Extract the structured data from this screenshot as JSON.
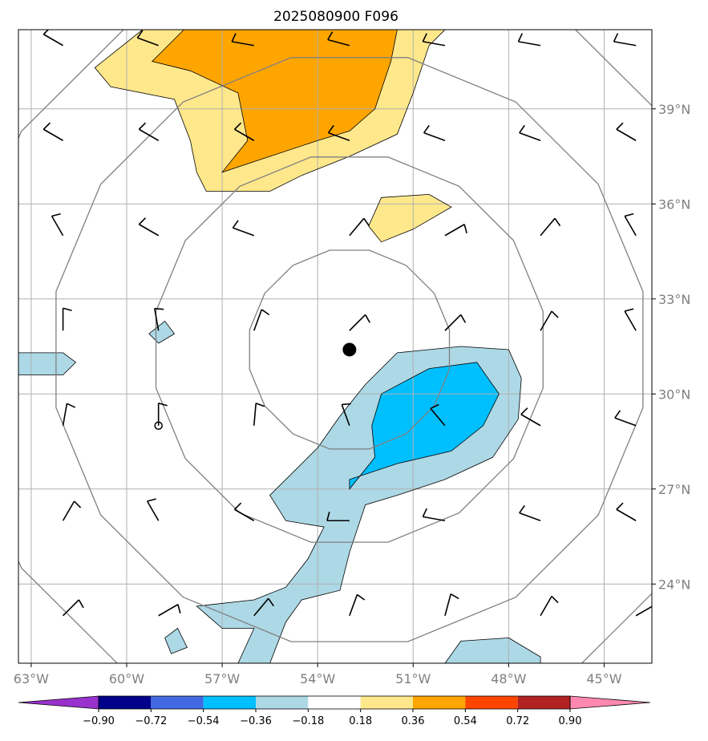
{
  "chart_data": {
    "type": "heatmap",
    "title": "2025080900 F096",
    "x_ticks": [
      -63,
      -60,
      -57,
      -54,
      -51,
      -48,
      -45
    ],
    "x_tick_labels": [
      "63°W",
      "60°W",
      "57°W",
      "54°W",
      "51°W",
      "48°W",
      "45°W"
    ],
    "y_ticks": [
      24,
      27,
      30,
      33,
      36,
      39
    ],
    "y_tick_labels": [
      "24°N",
      "27°N",
      "30°N",
      "33°N",
      "36°N",
      "39°N"
    ],
    "xlim": [
      -63.4,
      -43.5
    ],
    "ylim": [
      21.5,
      41.5
    ],
    "grid": true,
    "colorbar": {
      "levels": [
        -0.9,
        -0.72,
        -0.54,
        -0.36,
        -0.18,
        0.18,
        0.36,
        0.54,
        0.72,
        0.9
      ],
      "tick_labels": [
        "−0.90",
        "−0.72",
        "−0.54",
        "−0.36",
        "−0.18",
        "0.18",
        "0.36",
        "0.54",
        "0.72",
        "0.90"
      ],
      "colors": [
        "#9932cc",
        "#00008b",
        "#4169e1",
        "#00bfff",
        "#add8e6",
        "#ffffff",
        "#ffe88c",
        "#ffa500",
        "#ff4500",
        "#b22222",
        "#ff88b0"
      ],
      "extend": "both"
    },
    "storm_center": {
      "lon": -53.0,
      "lat": 31.4
    },
    "secondary_center": {
      "lon": -59.0,
      "lat": 29.0
    },
    "range_ring_radii_deg": [
      3.2,
      6.2,
      9.4,
      12.4
    ],
    "filled_regions": [
      {
        "level": "0.18 to 0.36",
        "color": "#ffe88c",
        "points": [
          [
            -59.5,
            41.5
          ],
          [
            -61.0,
            40.3
          ],
          [
            -60.5,
            39.7
          ],
          [
            -58.5,
            39.3
          ],
          [
            -58.0,
            38.0
          ],
          [
            -57.8,
            37.0
          ],
          [
            -57.5,
            36.4
          ],
          [
            -55.5,
            36.4
          ],
          [
            -54.5,
            36.9
          ],
          [
            -53.0,
            37.5
          ],
          [
            -51.5,
            38.2
          ],
          [
            -51.0,
            39.5
          ],
          [
            -50.5,
            41.0
          ],
          [
            -50.0,
            41.5
          ]
        ]
      },
      {
        "level": "0.36 to 0.54",
        "color": "#ffa500",
        "points": [
          [
            -58.2,
            41.5
          ],
          [
            -59.2,
            40.5
          ],
          [
            -58.0,
            40.2
          ],
          [
            -56.5,
            39.5
          ],
          [
            -56.2,
            38.0
          ],
          [
            -57.0,
            37.0
          ],
          [
            -55.5,
            37.5
          ],
          [
            -54.0,
            38.0
          ],
          [
            -53.0,
            38.3
          ],
          [
            -52.2,
            39.0
          ],
          [
            -51.7,
            40.5
          ],
          [
            -51.5,
            41.5
          ]
        ]
      },
      {
        "level": "0.18 to 0.36",
        "color": "#ffe88c",
        "points": [
          [
            -52.0,
            36.2
          ],
          [
            -50.5,
            36.3
          ],
          [
            -49.8,
            35.9
          ],
          [
            -51.0,
            35.2
          ],
          [
            -52.0,
            34.8
          ],
          [
            -52.4,
            35.3
          ]
        ]
      },
      {
        "level": "-0.36 to -0.18",
        "color": "#add8e6",
        "points": [
          [
            -63.4,
            31.3
          ],
          [
            -62.0,
            31.3
          ],
          [
            -61.6,
            31.0
          ],
          [
            -62.0,
            30.6
          ],
          [
            -63.4,
            30.6
          ]
        ]
      },
      {
        "level": "-0.36 to -0.18",
        "color": "#add8e6",
        "points": [
          [
            -59.3,
            31.9
          ],
          [
            -58.8,
            32.3
          ],
          [
            -58.5,
            31.9
          ],
          [
            -59.0,
            31.6
          ]
        ]
      },
      {
        "level": "-0.36 to -0.18",
        "color": "#add8e6",
        "points": [
          [
            -51.5,
            31.3
          ],
          [
            -49.5,
            31.5
          ],
          [
            -48.0,
            31.4
          ],
          [
            -47.6,
            30.5
          ],
          [
            -47.7,
            29.2
          ],
          [
            -48.5,
            28.0
          ],
          [
            -50.0,
            27.3
          ],
          [
            -51.5,
            26.8
          ],
          [
            -52.5,
            26.5
          ],
          [
            -53.0,
            25.0
          ],
          [
            -53.3,
            23.8
          ],
          [
            -54.5,
            23.5
          ],
          [
            -55.0,
            22.8
          ],
          [
            -55.5,
            21.5
          ],
          [
            -56.5,
            21.5
          ],
          [
            -56.0,
            22.6
          ],
          [
            -57.0,
            22.6
          ],
          [
            -57.8,
            23.3
          ],
          [
            -56.0,
            23.5
          ],
          [
            -55.0,
            23.9
          ],
          [
            -54.3,
            24.8
          ],
          [
            -53.8,
            25.8
          ],
          [
            -55.0,
            26.0
          ],
          [
            -55.5,
            26.8
          ],
          [
            -54.0,
            28.3
          ],
          [
            -53.3,
            29.3
          ],
          [
            -52.5,
            30.3
          ]
        ]
      },
      {
        "level": "-0.54 to -0.36",
        "color": "#00bfff",
        "points": [
          [
            -52.0,
            30.0
          ],
          [
            -50.5,
            30.8
          ],
          [
            -49.0,
            31.0
          ],
          [
            -48.3,
            30.0
          ],
          [
            -48.8,
            29.0
          ],
          [
            -49.8,
            28.2
          ],
          [
            -51.5,
            27.8
          ],
          [
            -53.0,
            27.3
          ],
          [
            -53.0,
            27.0
          ],
          [
            -52.2,
            28.0
          ],
          [
            -52.3,
            29.0
          ]
        ]
      },
      {
        "level": "-0.36 to -0.18",
        "color": "#add8e6",
        "points": [
          [
            -58.8,
            22.3
          ],
          [
            -58.4,
            22.6
          ],
          [
            -58.1,
            22.0
          ],
          [
            -58.6,
            21.8
          ]
        ]
      },
      {
        "level": "-0.36 to -0.18",
        "color": "#add8e6",
        "points": [
          [
            -50.0,
            21.5
          ],
          [
            -49.5,
            22.2
          ],
          [
            -48.0,
            22.3
          ],
          [
            -47.0,
            21.7
          ],
          [
            -47.0,
            21.5
          ]
        ]
      }
    ],
    "wind_barbs": {
      "lons": [
        -62,
        -59,
        -56,
        -53,
        -50,
        -47,
        -44
      ],
      "lats": [
        23,
        26,
        29,
        32,
        35,
        38,
        41
      ],
      "directions_deg": [
        [
          45,
          60,
          40,
          20,
          15,
          30,
          60
        ],
        [
          30,
          330,
          300,
          270,
          280,
          290,
          300
        ],
        [
          10,
          0,
          5,
          340,
          320,
          300,
          290
        ],
        [
          0,
          350,
          20,
          45,
          45,
          30,
          330
        ],
        [
          330,
          300,
          290,
          40,
          60,
          40,
          330
        ],
        [
          300,
          300,
          300,
          290,
          290,
          290,
          300
        ],
        [
          300,
          290,
          280,
          285,
          280,
          280,
          280
        ]
      ]
    }
  }
}
